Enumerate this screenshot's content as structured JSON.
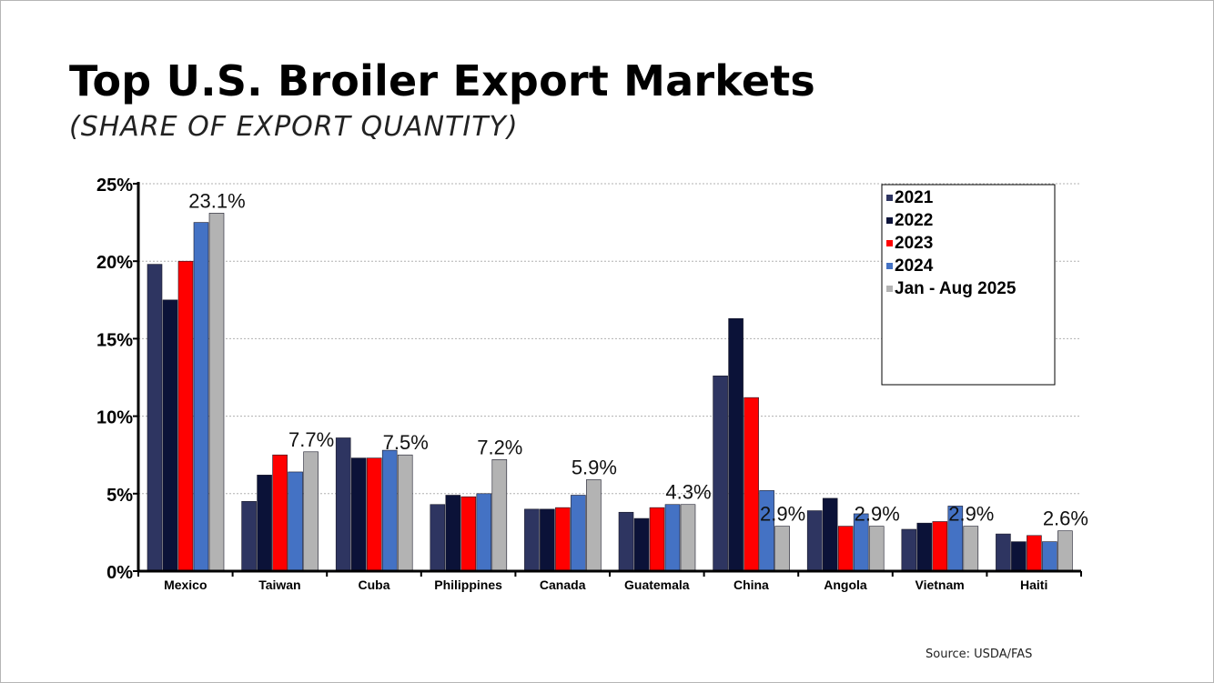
{
  "title": "Top U.S. Broiler Export Markets",
  "subtitle": "(SHARE OF EXPORT QUANTITY)",
  "source": "Source: USDA/FAS",
  "chart_data": {
    "type": "bar",
    "title": "Top U.S. Broiler Export Markets",
    "subtitle": "(SHARE OF EXPORT QUANTITY)",
    "xlabel": "",
    "ylabel": "",
    "ylim": [
      0,
      25
    ],
    "yticks": [
      0,
      5,
      10,
      15,
      20,
      25
    ],
    "ytick_labels": [
      "0%",
      "5%",
      "10%",
      "15%",
      "20%",
      "25%"
    ],
    "grid": true,
    "legend_position": "top-right",
    "categories": [
      "Mexico",
      "Taiwan",
      "Cuba",
      "Philippines",
      "Canada",
      "Guatemala",
      "China",
      "Angola",
      "Vietnam",
      "Haiti"
    ],
    "series": [
      {
        "name": "2021",
        "color": "#2e3561",
        "values": [
          19.8,
          4.5,
          8.6,
          4.3,
          4.0,
          3.8,
          12.6,
          3.9,
          2.7,
          2.4
        ]
      },
      {
        "name": "2022",
        "color": "#0b1238",
        "values": [
          17.5,
          6.2,
          7.3,
          4.9,
          4.0,
          3.4,
          16.3,
          4.7,
          3.1,
          1.9
        ]
      },
      {
        "name": "2023",
        "color": "#ff0000",
        "values": [
          20.0,
          7.5,
          7.3,
          4.8,
          4.1,
          4.1,
          11.2,
          2.9,
          3.2,
          2.3
        ]
      },
      {
        "name": "2024",
        "color": "#4472c4",
        "values": [
          22.5,
          6.4,
          7.8,
          5.0,
          4.9,
          4.3,
          5.2,
          3.7,
          4.2,
          1.9
        ]
      },
      {
        "name": "Jan - Aug 2025",
        "color": "#b3b3b3",
        "values": [
          23.1,
          7.7,
          7.5,
          7.2,
          5.9,
          4.3,
          2.9,
          2.9,
          2.9,
          2.6
        ]
      }
    ],
    "data_labels": [
      "23.1%",
      "7.7%",
      "7.5%",
      "7.2%",
      "5.9%",
      "4.3%",
      "2.9%",
      "2.9%",
      "2.9%",
      "2.6%"
    ]
  }
}
